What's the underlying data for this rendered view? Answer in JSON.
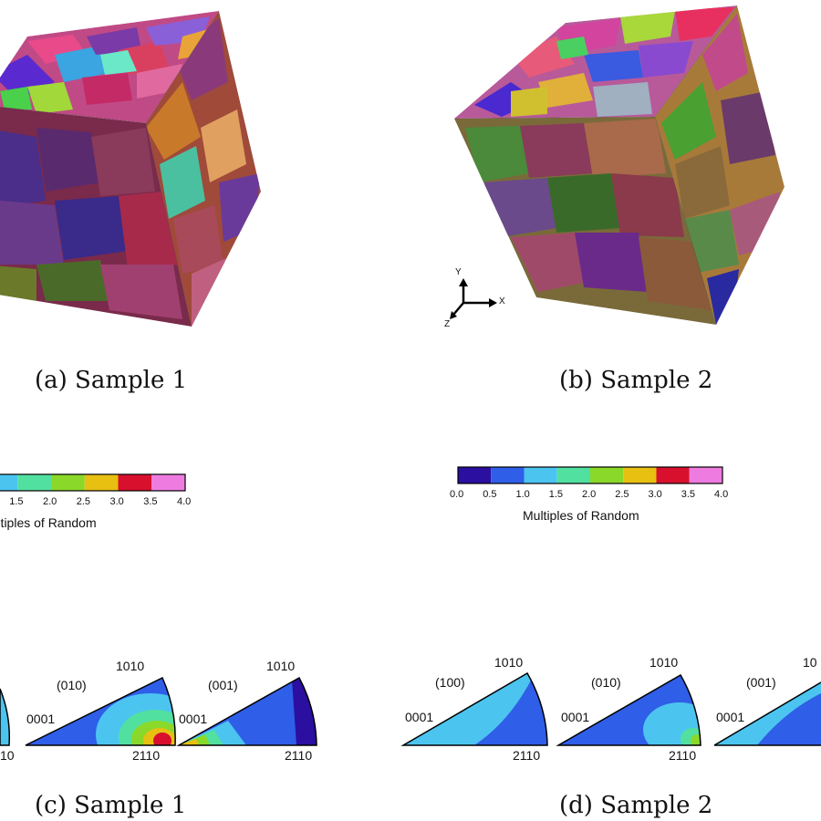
{
  "figure": {
    "panels": [
      {
        "id": "a",
        "caption": "(a) Sample 1"
      },
      {
        "id": "b",
        "caption": "(b) Sample 2"
      },
      {
        "id": "c",
        "caption": "(c) Sample 1"
      },
      {
        "id": "d",
        "caption": "(d) Sample 2"
      }
    ],
    "colorbar": {
      "title": "Multiples of Random",
      "ticks": [
        "0.0",
        "0.5",
        "1.0",
        "1.5",
        "2.0",
        "2.5",
        "3.0",
        "3.5",
        "4.0"
      ],
      "colors": [
        "#2a0fa0",
        "#2f5ee8",
        "#4cc4f0",
        "#52e0a0",
        "#8ad82a",
        "#e8c012",
        "#d8102e",
        "#ee7ce0"
      ]
    },
    "triad": {
      "x": "X",
      "y": "Y",
      "z": "Z"
    },
    "pole_figures": {
      "top_label": "1010",
      "left_label": "0001",
      "bottom_label": "2110",
      "planes": [
        "(100)",
        "(010)",
        "(001)"
      ]
    }
  }
}
